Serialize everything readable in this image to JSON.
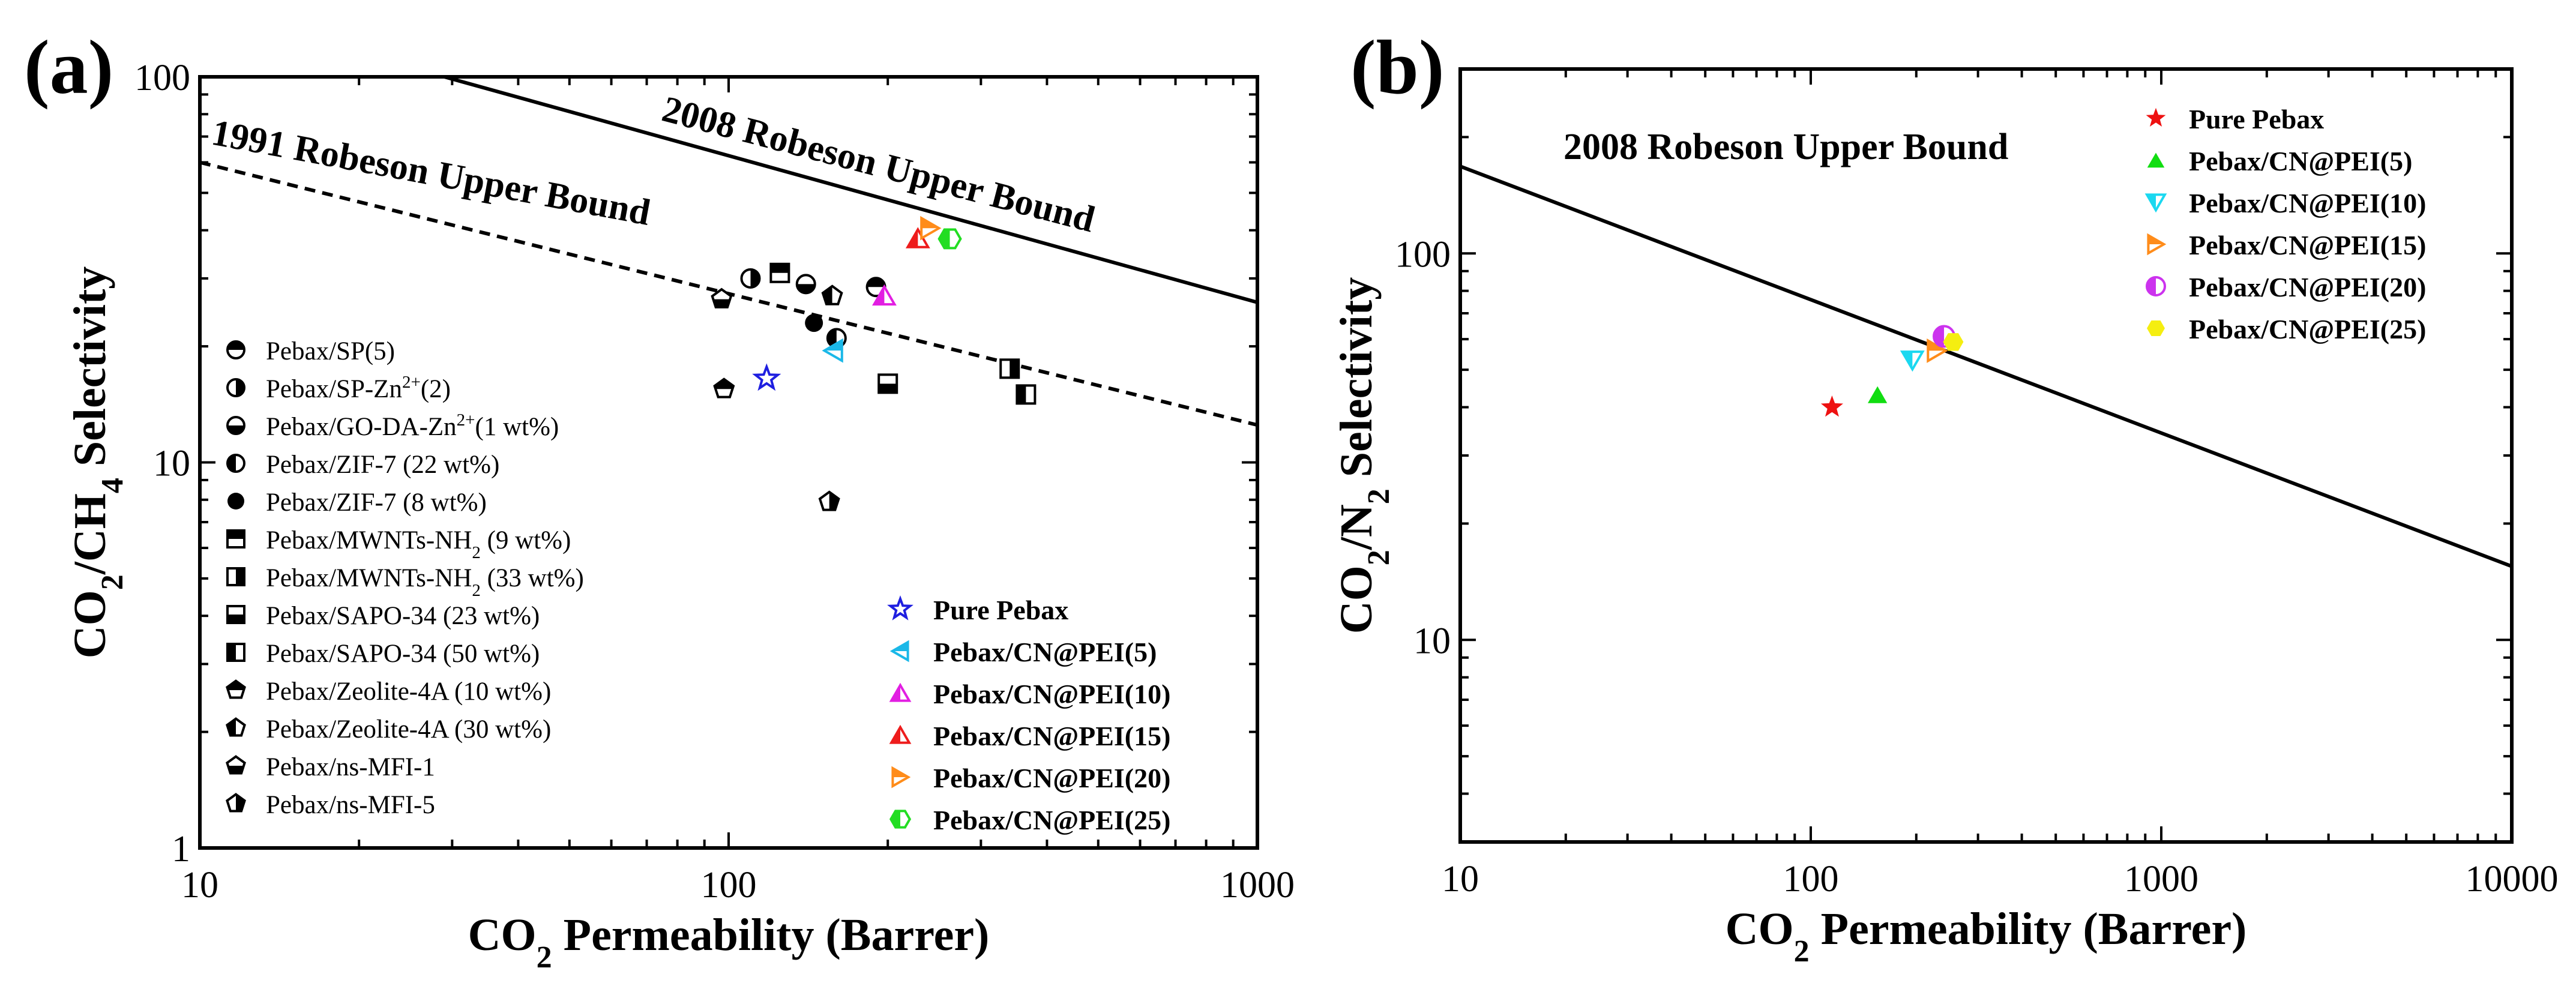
{
  "figure": {
    "panel_a_label": "(a)",
    "panel_b_label": "(b)"
  },
  "chart_data": [
    {
      "type": "scatter",
      "panel": "(a)",
      "xscale": "log",
      "yscale": "log",
      "xlim": [
        10,
        1000
      ],
      "ylim": [
        1,
        100
      ],
      "x_ticks": [
        "10",
        "100",
        "1000"
      ],
      "y_ticks": [
        "1",
        "10",
        "100"
      ],
      "xlabel_parts": [
        "CO",
        "2",
        " Permeability (Barrer)"
      ],
      "ylabel_parts": [
        "CO",
        "2",
        "/CH",
        "4",
        " Selectivity"
      ],
      "upper_bounds": [
        {
          "name": "2008 Robeson Upper Bound",
          "style": "solid",
          "points": [
            [
              29,
              100
            ],
            [
              1000,
              26
            ]
          ]
        },
        {
          "name": "1991 Robeson Upper Bound",
          "style": "dashed",
          "points": [
            [
              10,
              60
            ],
            [
              1000,
              12.5
            ]
          ]
        }
      ],
      "reference_legend": [
        {
          "parts": [
            "Pebax/SP(5)"
          ],
          "marker": "half-circle-top"
        },
        {
          "parts": [
            "Pebax/SP-Zn",
            "2+",
            "(2)"
          ],
          "marker": "half-circle-right"
        },
        {
          "parts": [
            "Pebax/GO-DA-Zn",
            "2+",
            "(1 wt%)"
          ],
          "marker": "half-circle-bottom"
        },
        {
          "parts": [
            "Pebax/ZIF-7 (22 wt%)"
          ],
          "marker": "half-circle-left"
        },
        {
          "parts": [
            "Pebax/ZIF-7 (8 wt%)"
          ],
          "marker": "filled-circle"
        },
        {
          "parts": [
            "Pebax/MWNTs-NH",
            "2",
            " (9 wt%)"
          ],
          "marker": "half-square-top"
        },
        {
          "parts": [
            "Pebax/MWNTs-NH",
            "2",
            " (33 wt%)"
          ],
          "marker": "half-square-right"
        },
        {
          "parts": [
            "Pebax/SAPO-34 (23 wt%)"
          ],
          "marker": "half-square-bottom"
        },
        {
          "parts": [
            "Pebax/SAPO-34 (50 wt%)"
          ],
          "marker": "half-square-left"
        },
        {
          "parts": [
            "Pebax/Zeolite-4A (10 wt%)"
          ],
          "marker": "half-pentagon-top"
        },
        {
          "parts": [
            "Pebax/Zeolite-4A (30 wt%)"
          ],
          "marker": "half-pentagon-left"
        },
        {
          "parts": [
            "Pebax/ns-MFI-1"
          ],
          "marker": "half-pentagon-bottom"
        },
        {
          "parts": [
            "Pebax/ns-MFI-5"
          ],
          "marker": "half-pentagon-right"
        }
      ],
      "reference_points": [
        {
          "x": 190,
          "y": 28.5,
          "marker": "half-circle-top"
        },
        {
          "x": 110,
          "y": 30,
          "marker": "half-circle-right"
        },
        {
          "x": 140,
          "y": 29,
          "marker": "half-circle-bottom"
        },
        {
          "x": 160,
          "y": 21,
          "marker": "half-circle-left"
        },
        {
          "x": 145,
          "y": 23,
          "marker": "filled-circle"
        },
        {
          "x": 125,
          "y": 31,
          "marker": "half-square-top"
        },
        {
          "x": 340,
          "y": 17.5,
          "marker": "half-square-right"
        },
        {
          "x": 200,
          "y": 16,
          "marker": "half-square-bottom"
        },
        {
          "x": 365,
          "y": 15,
          "marker": "half-square-left"
        },
        {
          "x": 98,
          "y": 15.5,
          "marker": "half-pentagon-top"
        },
        {
          "x": 157,
          "y": 27,
          "marker": "half-pentagon-left"
        },
        {
          "x": 97,
          "y": 26.5,
          "marker": "half-pentagon-bottom"
        },
        {
          "x": 155,
          "y": 7.9,
          "marker": "half-pentagon-right"
        }
      ],
      "series": [
        {
          "name": "Pure Pebax",
          "x": 118,
          "y": 16.5,
          "marker": "star-open",
          "color": "#1f1fe0"
        },
        {
          "name": "Pebax/CN@PEI(5)",
          "x": 158,
          "y": 19.5,
          "marker": "tri-left-half",
          "color": "#1ab8e8"
        },
        {
          "name": "Pebax/CN@PEI(10)",
          "x": 197,
          "y": 27,
          "marker": "tri-up-half",
          "color": "#e21ee2"
        },
        {
          "name": "Pebax/CN@PEI(15)",
          "x": 228,
          "y": 38,
          "marker": "tri-up-half",
          "color": "#ee1c1c"
        },
        {
          "name": "Pebax/CN@PEI(20)",
          "x": 240,
          "y": 40.5,
          "marker": "tri-right-half",
          "color": "#ff8c1a"
        },
        {
          "name": "Pebax/CN@PEI(25)",
          "x": 262,
          "y": 38,
          "marker": "hex-half",
          "color": "#22dd22"
        }
      ]
    },
    {
      "type": "scatter",
      "panel": "(b)",
      "xscale": "log",
      "yscale": "log",
      "xlim": [
        10,
        10000
      ],
      "ylim": [
        3,
        300
      ],
      "x_ticks": [
        "10",
        "100",
        "1000",
        "10000"
      ],
      "y_ticks": [
        "10",
        "100"
      ],
      "xlabel_parts": [
        "CO",
        "2",
        " Permeability (Barrer)"
      ],
      "ylabel_parts": [
        "CO",
        "2",
        "/N",
        "2",
        " Selectivity"
      ],
      "upper_bounds": [
        {
          "name": "2008 Robeson Upper Bound",
          "style": "solid",
          "points": [
            [
              10,
              168
            ],
            [
              10000,
              15.5
            ]
          ]
        }
      ],
      "series": [
        {
          "name": "Pure Pebax",
          "x": 115,
          "y": 40,
          "marker": "star",
          "color": "#ee1111"
        },
        {
          "name": "Pebax/CN@PEI(5)",
          "x": 155,
          "y": 43,
          "marker": "triangle-up",
          "color": "#11dd11"
        },
        {
          "name": "Pebax/CN@PEI(10)",
          "x": 195,
          "y": 53,
          "marker": "triangle-down-half",
          "color": "#1ad8f0"
        },
        {
          "name": "Pebax/CN@PEI(15)",
          "x": 228,
          "y": 56,
          "marker": "tri-right-half",
          "color": "#ff8c1a"
        },
        {
          "name": "Pebax/CN@PEI(20)",
          "x": 240,
          "y": 61,
          "marker": "circle-half",
          "color": "#cc33ee"
        },
        {
          "name": "Pebax/CN@PEI(25)",
          "x": 255,
          "y": 59,
          "marker": "hex-full",
          "color": "#f5ee10"
        }
      ]
    }
  ]
}
